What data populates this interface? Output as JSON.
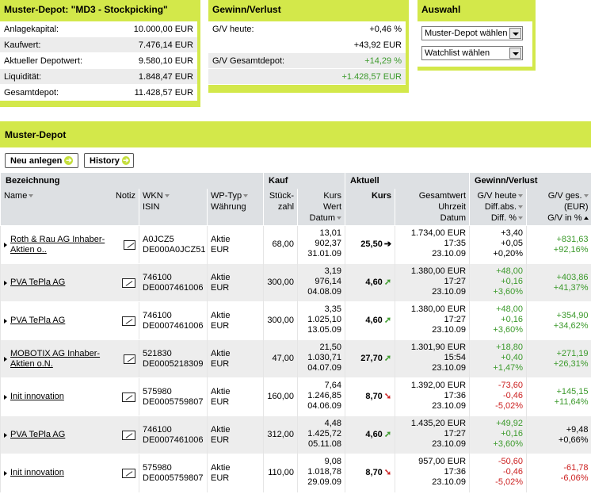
{
  "depot_panel": {
    "title": "Muster-Depot: \"MD3 - Stockpicking\"",
    "rows": [
      {
        "label": "Anlagekapital:",
        "value": "10.000,00 EUR"
      },
      {
        "label": "Kaufwert:",
        "value": "7.476,14 EUR"
      },
      {
        "label": "Aktueller Depotwert:",
        "value": "9.580,10 EUR"
      },
      {
        "label": "Liquidität:",
        "value": "1.848,47 EUR"
      },
      {
        "label": "Gesamtdepot:",
        "value": "11.428,57 EUR"
      }
    ]
  },
  "gv_panel": {
    "title": "Gewinn/Verlust",
    "heute_label": "G/V heute:",
    "heute_pct": "+0,46 %",
    "heute_abs": "+43,92 EUR",
    "gesamt_label": "G/V Gesamtdepot:",
    "gesamt_pct": "+14,29 %",
    "gesamt_abs": "+1.428,57 EUR"
  },
  "auswahl_panel": {
    "title": "Auswahl",
    "depot_select": "Muster-Depot wählen",
    "watchlist_select": "Watchlist wählen"
  },
  "main": {
    "title": "Muster-Depot",
    "new_button": "Neu anlegen",
    "history_button": "History"
  },
  "table": {
    "groups": {
      "bezeichnung": "Bezeichnung",
      "kauf": "Kauf",
      "aktuell": "Aktuell",
      "gv": "Gewinn/Verlust"
    },
    "headers": {
      "name": "Name",
      "notiz": "Notiz",
      "wkn": "WKN",
      "isin": "ISIN",
      "wptyp": "WP-Typ",
      "waehrung": "Währung",
      "stueck": "Stück-",
      "zahl": "zahl",
      "kurs": "Kurs",
      "wert": "Wert",
      "datum": "Datum",
      "akurs": "Kurs",
      "gesamtwert": "Gesamtwert",
      "uhrzeit": "Uhrzeit",
      "adatum": "Datum",
      "gvheute": "G/V heute",
      "diffabs": "Diff.abs.",
      "diffpct": "Diff. %",
      "gvges": "G/V ges.",
      "eur": "(EUR)",
      "gvpct": "G/V in %"
    },
    "rows": [
      {
        "name": "Roth & Rau AG Inhaber-Aktien o..",
        "wkn": "A0JCZ5",
        "isin": "DE000A0JCZ51",
        "typ": "Aktie",
        "cur": "EUR",
        "stk": "68,00",
        "kkurs": "13,01",
        "kwert": "902,37",
        "kdatum": "31.01.09",
        "akurs": "25,50",
        "trend": "➔",
        "trend_color": "#000000",
        "gwert": "1.734,00 EUR",
        "zeit": "17:35",
        "adatum": "23.10.09",
        "gvh": "+3,40",
        "dabs": "+0,05",
        "dpct": "+0,20%",
        "gvh_color": "#000000",
        "gges": "+831,63",
        "gpct": "+92,16%",
        "gges_color": "#3c9a2c"
      },
      {
        "name": "PVA TePla AG",
        "wkn": "746100",
        "isin": "DE0007461006",
        "typ": "Aktie",
        "cur": "EUR",
        "stk": "300,00",
        "kkurs": "3,19",
        "kwert": "976,14",
        "kdatum": "04.08.09",
        "akurs": "4,60",
        "trend": "➚",
        "trend_color": "#3c9a2c",
        "gwert": "1.380,00 EUR",
        "zeit": "17:27",
        "adatum": "23.10.09",
        "gvh": "+48,00",
        "dabs": "+0,16",
        "dpct": "+3,60%",
        "gvh_color": "#3c9a2c",
        "gges": "+403,86",
        "gpct": "+41,37%",
        "gges_color": "#3c9a2c"
      },
      {
        "name": "PVA TePla AG",
        "wkn": "746100",
        "isin": "DE0007461006",
        "typ": "Aktie",
        "cur": "EUR",
        "stk": "300,00",
        "kkurs": "3,35",
        "kwert": "1.025,10",
        "kdatum": "13.05.09",
        "akurs": "4,60",
        "trend": "➚",
        "trend_color": "#3c9a2c",
        "gwert": "1.380,00 EUR",
        "zeit": "17:27",
        "adatum": "23.10.09",
        "gvh": "+48,00",
        "dabs": "+0,16",
        "dpct": "+3,60%",
        "gvh_color": "#3c9a2c",
        "gges": "+354,90",
        "gpct": "+34,62%",
        "gges_color": "#3c9a2c"
      },
      {
        "name": "MOBOTIX AG Inhaber-Aktien o.N.",
        "wkn": "521830",
        "isin": "DE0005218309",
        "typ": "Aktie",
        "cur": "EUR",
        "stk": "47,00",
        "kkurs": "21,50",
        "kwert": "1.030,71",
        "kdatum": "04.07.09",
        "akurs": "27,70",
        "trend": "➚",
        "trend_color": "#3c9a2c",
        "gwert": "1.301,90 EUR",
        "zeit": "15:54",
        "adatum": "23.10.09",
        "gvh": "+18,80",
        "dabs": "+0,40",
        "dpct": "+1,47%",
        "gvh_color": "#3c9a2c",
        "gges": "+271,19",
        "gpct": "+26,31%",
        "gges_color": "#3c9a2c"
      },
      {
        "name": "Init innovation",
        "wkn": "575980",
        "isin": "DE0005759807",
        "typ": "Aktie",
        "cur": "EUR",
        "stk": "160,00",
        "kkurs": "7,64",
        "kwert": "1.246,85",
        "kdatum": "04.06.09",
        "akurs": "8,70",
        "trend": "➘",
        "trend_color": "#cc2222",
        "gwert": "1.392,00 EUR",
        "zeit": "17:36",
        "adatum": "23.10.09",
        "gvh": "-73,60",
        "dabs": "-0,46",
        "dpct": "-5,02%",
        "gvh_color": "#cc2222",
        "gges": "+145,15",
        "gpct": "+11,64%",
        "gges_color": "#3c9a2c"
      },
      {
        "name": "PVA TePla AG",
        "wkn": "746100",
        "isin": "DE0007461006",
        "typ": "Aktie",
        "cur": "EUR",
        "stk": "312,00",
        "kkurs": "4,48",
        "kwert": "1.425,72",
        "kdatum": "05.11.08",
        "akurs": "4,60",
        "trend": "➚",
        "trend_color": "#3c9a2c",
        "gwert": "1.435,20 EUR",
        "zeit": "17:27",
        "adatum": "23.10.09",
        "gvh": "+49,92",
        "dabs": "+0,16",
        "dpct": "+3,60%",
        "gvh_color": "#3c9a2c",
        "gges": "+9,48",
        "gpct": "+0,66%",
        "gges_color": "#000000"
      },
      {
        "name": "Init innovation",
        "wkn": "575980",
        "isin": "DE0005759807",
        "typ": "Aktie",
        "cur": "EUR",
        "stk": "110,00",
        "kkurs": "9,08",
        "kwert": "1.018,78",
        "kdatum": "29.09.09",
        "akurs": "8,70",
        "trend": "➘",
        "trend_color": "#cc2222",
        "gwert": "957,00 EUR",
        "zeit": "17:36",
        "adatum": "23.10.09",
        "gvh": "-50,60",
        "dabs": "-0,46",
        "dpct": "-5,02%",
        "gvh_color": "#cc2222",
        "gges": "-61,78",
        "gpct": "-6,06%",
        "gges_color": "#cc2222"
      }
    ]
  }
}
